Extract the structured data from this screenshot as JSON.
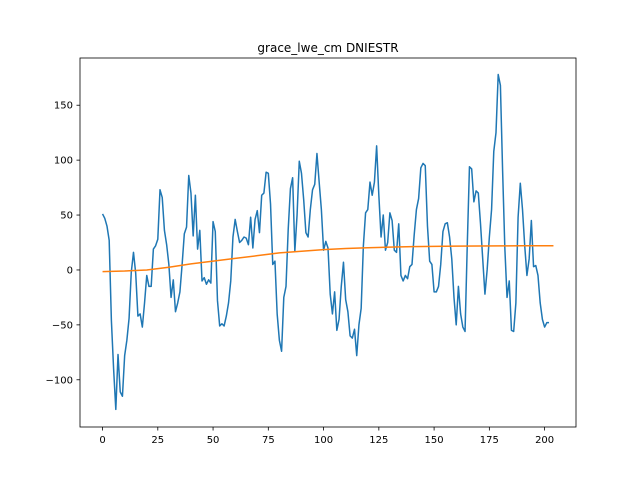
{
  "chart_data": {
    "type": "line",
    "title": "grace_lwe_cm DNIESTR",
    "xlabel": "",
    "ylabel": "",
    "xlim": [
      -10.2,
      214.2
    ],
    "ylim": [
      -143,
      193
    ],
    "xticks": [
      0,
      25,
      50,
      75,
      100,
      125,
      150,
      175,
      200
    ],
    "yticks": [
      -100,
      -50,
      0,
      50,
      100,
      150
    ],
    "grid": false,
    "legend": "none",
    "series": [
      {
        "color": "#1f77b4",
        "points": [
          [
            0,
            51
          ],
          [
            1,
            47
          ],
          [
            2,
            40
          ],
          [
            3,
            27
          ],
          [
            4,
            -46
          ],
          [
            5,
            -90
          ],
          [
            6,
            -127
          ],
          [
            7,
            -77
          ],
          [
            8,
            -111
          ],
          [
            9,
            -115
          ],
          [
            10,
            -78
          ],
          [
            11,
            -64
          ],
          [
            12,
            -44
          ],
          [
            13,
            -2
          ],
          [
            14,
            16
          ],
          [
            15,
            -3
          ],
          [
            16,
            -42
          ],
          [
            17,
            -40
          ],
          [
            18,
            -52
          ],
          [
            19,
            -30
          ],
          [
            20,
            -5
          ],
          [
            21,
            -15
          ],
          [
            22,
            -15
          ],
          [
            23,
            19
          ],
          [
            24,
            22
          ],
          [
            25,
            28
          ],
          [
            26,
            73
          ],
          [
            27,
            66
          ],
          [
            28,
            36
          ],
          [
            29,
            23
          ],
          [
            30,
            5
          ],
          [
            31,
            -25
          ],
          [
            32,
            -9
          ],
          [
            33,
            -38
          ],
          [
            34,
            -30
          ],
          [
            35,
            -20
          ],
          [
            36,
            5
          ],
          [
            37,
            33
          ],
          [
            38,
            39
          ],
          [
            39,
            86
          ],
          [
            40,
            70
          ],
          [
            41,
            31
          ],
          [
            42,
            68
          ],
          [
            43,
            19
          ],
          [
            44,
            36
          ],
          [
            45,
            -10
          ],
          [
            46,
            -7
          ],
          [
            47,
            -13
          ],
          [
            48,
            -9
          ],
          [
            49,
            -12
          ],
          [
            50,
            44
          ],
          [
            51,
            35
          ],
          [
            52,
            -28
          ],
          [
            53,
            -51
          ],
          [
            54,
            -49
          ],
          [
            55,
            -51
          ],
          [
            56,
            -42
          ],
          [
            57,
            -30
          ],
          [
            58,
            -10
          ],
          [
            59,
            30
          ],
          [
            60,
            46
          ],
          [
            61,
            35
          ],
          [
            62,
            25
          ],
          [
            63,
            27
          ],
          [
            64,
            30
          ],
          [
            65,
            29
          ],
          [
            66,
            23
          ],
          [
            67,
            48
          ],
          [
            68,
            20
          ],
          [
            69,
            46
          ],
          [
            70,
            54
          ],
          [
            71,
            34
          ],
          [
            72,
            68
          ],
          [
            73,
            70
          ],
          [
            74,
            89
          ],
          [
            75,
            88
          ],
          [
            76,
            60
          ],
          [
            77,
            5
          ],
          [
            78,
            8
          ],
          [
            79,
            -40
          ],
          [
            80,
            -64
          ],
          [
            81,
            -74
          ],
          [
            82,
            -25
          ],
          [
            83,
            -15
          ],
          [
            84,
            37
          ],
          [
            85,
            74
          ],
          [
            86,
            84
          ],
          [
            87,
            17
          ],
          [
            88,
            50
          ],
          [
            89,
            99
          ],
          [
            90,
            88
          ],
          [
            91,
            64
          ],
          [
            92,
            34
          ],
          [
            93,
            30
          ],
          [
            94,
            55
          ],
          [
            95,
            73
          ],
          [
            96,
            78
          ],
          [
            97,
            106
          ],
          [
            98,
            80
          ],
          [
            99,
            55
          ],
          [
            100,
            18
          ],
          [
            101,
            26
          ],
          [
            102,
            20
          ],
          [
            103,
            -22
          ],
          [
            104,
            -40
          ],
          [
            105,
            -20
          ],
          [
            106,
            -55
          ],
          [
            107,
            -45
          ],
          [
            108,
            -15
          ],
          [
            109,
            7
          ],
          [
            110,
            -27
          ],
          [
            111,
            -38
          ],
          [
            112,
            -60
          ],
          [
            113,
            -62
          ],
          [
            114,
            -54
          ],
          [
            115,
            -78
          ],
          [
            116,
            -50
          ],
          [
            117,
            -35
          ],
          [
            118,
            22
          ],
          [
            119,
            52
          ],
          [
            120,
            55
          ],
          [
            121,
            80
          ],
          [
            122,
            68
          ],
          [
            123,
            80
          ],
          [
            124,
            113
          ],
          [
            125,
            68
          ],
          [
            126,
            30
          ],
          [
            127,
            50
          ],
          [
            128,
            18
          ],
          [
            129,
            25
          ],
          [
            130,
            52
          ],
          [
            131,
            45
          ],
          [
            132,
            18
          ],
          [
            133,
            16
          ],
          [
            134,
            42
          ],
          [
            135,
            -5
          ],
          [
            136,
            -10
          ],
          [
            137,
            -5
          ],
          [
            138,
            -8
          ],
          [
            139,
            3
          ],
          [
            140,
            5
          ],
          [
            141,
            32
          ],
          [
            142,
            55
          ],
          [
            143,
            65
          ],
          [
            144,
            93
          ],
          [
            145,
            97
          ],
          [
            146,
            95
          ],
          [
            147,
            40
          ],
          [
            148,
            8
          ],
          [
            149,
            5
          ],
          [
            150,
            -20
          ],
          [
            151,
            -20
          ],
          [
            152,
            -15
          ],
          [
            153,
            5
          ],
          [
            154,
            35
          ],
          [
            155,
            42
          ],
          [
            156,
            43
          ],
          [
            157,
            30
          ],
          [
            158,
            10
          ],
          [
            159,
            -25
          ],
          [
            160,
            -50
          ],
          [
            161,
            -15
          ],
          [
            162,
            -40
          ],
          [
            163,
            -52
          ],
          [
            164,
            -56
          ],
          [
            165,
            22
          ],
          [
            166,
            94
          ],
          [
            167,
            92
          ],
          [
            168,
            62
          ],
          [
            169,
            72
          ],
          [
            170,
            70
          ],
          [
            171,
            42
          ],
          [
            172,
            10
          ],
          [
            173,
            -22
          ],
          [
            174,
            0
          ],
          [
            175,
            30
          ],
          [
            176,
            55
          ],
          [
            177,
            108
          ],
          [
            178,
            125
          ],
          [
            179,
            178
          ],
          [
            180,
            168
          ],
          [
            181,
            90
          ],
          [
            182,
            20
          ],
          [
            183,
            -25
          ],
          [
            184,
            -10
          ],
          [
            185,
            -55
          ],
          [
            186,
            -56
          ],
          [
            187,
            -30
          ],
          [
            188,
            48
          ],
          [
            189,
            79
          ],
          [
            190,
            55
          ],
          [
            191,
            22
          ],
          [
            192,
            -5
          ],
          [
            193,
            10
          ],
          [
            194,
            45
          ],
          [
            195,
            3
          ],
          [
            196,
            4
          ],
          [
            197,
            -5
          ],
          [
            198,
            -30
          ],
          [
            199,
            -45
          ],
          [
            200,
            -52
          ],
          [
            201,
            -48
          ],
          [
            202,
            -48
          ]
        ]
      },
      {
        "color": "#ff7f0e",
        "points": [
          [
            0,
            -1.5
          ],
          [
            10,
            -1
          ],
          [
            20,
            0
          ],
          [
            30,
            2.5
          ],
          [
            40,
            5.5
          ],
          [
            50,
            8
          ],
          [
            60,
            10.5
          ],
          [
            70,
            13
          ],
          [
            80,
            15.5
          ],
          [
            90,
            17
          ],
          [
            100,
            18.5
          ],
          [
            110,
            19.5
          ],
          [
            120,
            20.2
          ],
          [
            130,
            20.8
          ],
          [
            140,
            21.2
          ],
          [
            150,
            21.5
          ],
          [
            160,
            21.7
          ],
          [
            170,
            21.8
          ],
          [
            180,
            21.9
          ],
          [
            190,
            22
          ],
          [
            200,
            22
          ],
          [
            204,
            22
          ]
        ]
      }
    ]
  }
}
